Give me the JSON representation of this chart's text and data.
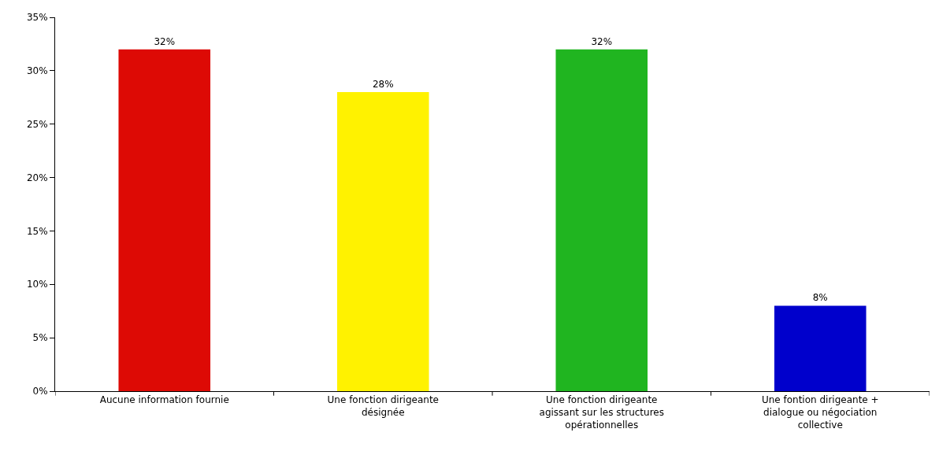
{
  "chart_data": {
    "type": "bar",
    "categories": [
      "Aucune information fournie",
      "Une fonction dirigeante désignée",
      "Une fonction dirigeante agissant sur les structures opérationnelles",
      "Une fontion dirigeante + dialogue ou négociation collective"
    ],
    "values": [
      32,
      28,
      32,
      8
    ],
    "colors": [
      "#dd0a05",
      "#fff200",
      "#20b520",
      "#0000cc"
    ],
    "value_labels": [
      "32%",
      "28%",
      "32%",
      "8%"
    ],
    "ylim": [
      0,
      35
    ],
    "yticks": [
      {
        "value": 0,
        "label": "0%"
      },
      {
        "value": 5,
        "label": "5%"
      },
      {
        "value": 10,
        "label": "10%"
      },
      {
        "value": 15,
        "label": "15%"
      },
      {
        "value": 20,
        "label": "20%"
      },
      {
        "value": 25,
        "label": "25%"
      },
      {
        "value": 30,
        "label": "30%"
      },
      {
        "value": 35,
        "label": "35%"
      }
    ],
    "grid": false,
    "legend": false
  }
}
